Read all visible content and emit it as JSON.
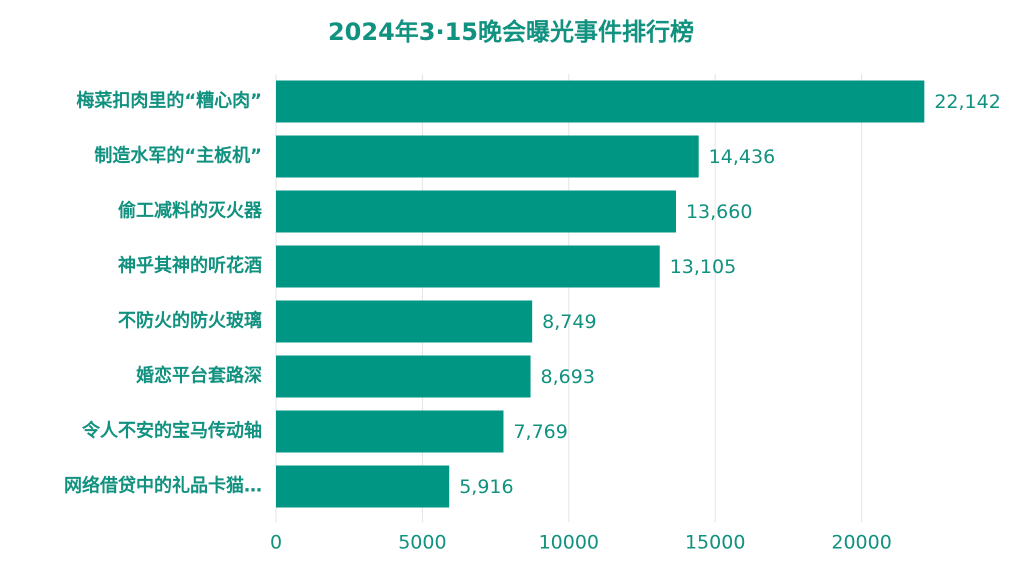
{
  "chart_data": {
    "type": "bar",
    "orientation": "horizontal",
    "title": "2024年3·15晚会曝光事件排行榜",
    "categories": [
      "梅菜扣肉里的“糟心肉”",
      "制造水军的“主板机”",
      "偷工减料的灭火器",
      "神乎其神的听花酒",
      "不防火的防火玻璃",
      "婚恋平台套路深",
      "令人不安的宝马传动轴",
      "网络借贷中的礼品卡猫…"
    ],
    "values": [
      22142,
      14436,
      13660,
      13105,
      8749,
      8693,
      7769,
      5916
    ],
    "value_labels": [
      "22,142",
      "14,436",
      "13,660",
      "13,105",
      "8,749",
      "8,693",
      "7,769",
      "5,916"
    ],
    "color": "#009684",
    "xlim": [
      0,
      25000
    ],
    "xticks": [
      0,
      5000,
      10000,
      15000,
      20000
    ],
    "grid": true
  }
}
